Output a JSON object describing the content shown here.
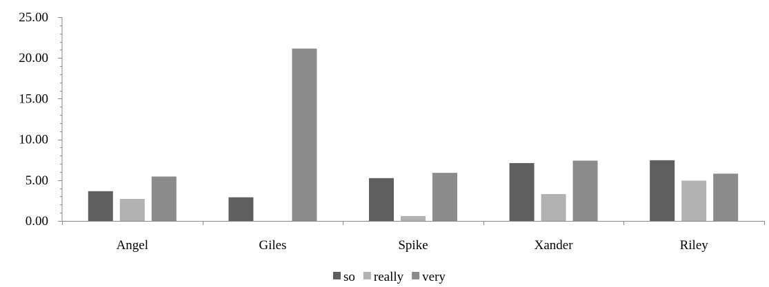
{
  "chart_data": {
    "type": "bar",
    "title": "",
    "xlabel": "",
    "ylabel": "",
    "categories": [
      "Angel",
      "Giles",
      "Spike",
      "Xander",
      "Riley"
    ],
    "series": [
      {
        "name": "so",
        "color": "#5f5f5f",
        "values": [
          3.65,
          2.9,
          5.25,
          7.1,
          7.45
        ]
      },
      {
        "name": "really",
        "color": "#b2b2b2",
        "values": [
          2.7,
          0.0,
          0.6,
          3.3,
          4.95
        ]
      },
      {
        "name": "very",
        "color": "#8b8b8b",
        "values": [
          5.45,
          21.15,
          5.9,
          7.4,
          5.8
        ]
      }
    ],
    "ylim": [
      0,
      25
    ],
    "yticks": [
      "0.00",
      "5.00",
      "10.00",
      "15.00",
      "20.00",
      "25.00"
    ],
    "grid": false,
    "legend_position": "bottom"
  }
}
